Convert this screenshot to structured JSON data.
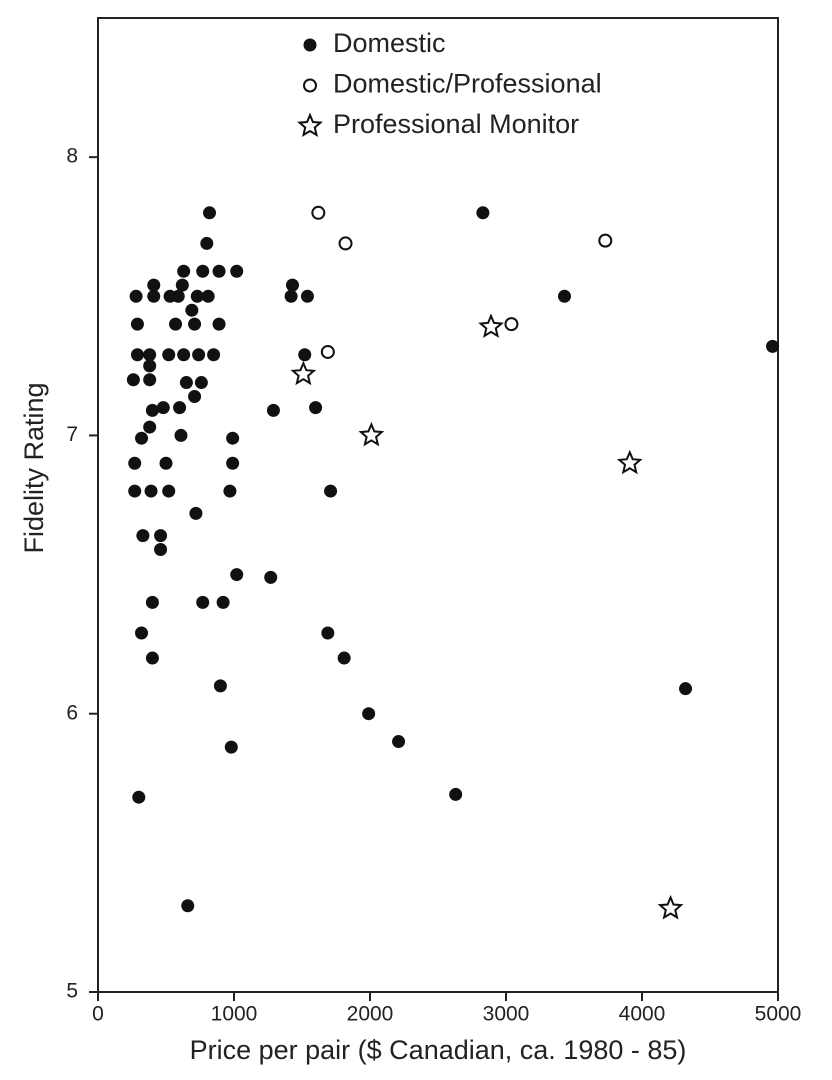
{
  "chart_data": {
    "type": "scatter",
    "x_label": "Price per pair ($ Canadian, ca. 1980 - 85)",
    "y_label": "Fidelity Rating",
    "xlim": [
      0,
      5000
    ],
    "ylim": [
      5,
      8.5
    ],
    "xticks": [
      0,
      1000,
      2000,
      3000,
      4000,
      5000
    ],
    "yticks": [
      5,
      6,
      7,
      8
    ],
    "legend": "top",
    "series": [
      {
        "name": "Domestic",
        "color": "#111111",
        "marker": "circle",
        "x": [
          280,
          410,
          410,
          290,
          290,
          260,
          380,
          380,
          380,
          400,
          380,
          480,
          320,
          270,
          270,
          390,
          500,
          520,
          330,
          460,
          460,
          400,
          320,
          400,
          300,
          530,
          590,
          630,
          620,
          570,
          520,
          630,
          600,
          610,
          650,
          690,
          710,
          730,
          740,
          710,
          760,
          770,
          810,
          800,
          820,
          850,
          890,
          890,
          1020,
          990,
          990,
          970,
          720,
          1020,
          770,
          920,
          900,
          980,
          660,
          1290,
          1270,
          1430,
          1420,
          1540,
          1520,
          1600,
          1710,
          1690,
          1810,
          1990,
          2210,
          2630,
          2830,
          3430,
          4960,
          4320
        ],
        "y": [
          7.5,
          7.54,
          7.5,
          7.4,
          7.29,
          7.2,
          7.29,
          7.2,
          7.25,
          7.09,
          7.03,
          7.1,
          6.99,
          6.9,
          6.8,
          6.8,
          6.9,
          6.8,
          6.64,
          6.64,
          6.59,
          6.4,
          6.29,
          6.2,
          5.7,
          7.5,
          7.5,
          7.59,
          7.54,
          7.4,
          7.29,
          7.29,
          7.1,
          7.0,
          7.19,
          7.45,
          7.4,
          7.5,
          7.29,
          7.14,
          7.19,
          7.59,
          7.5,
          7.69,
          7.8,
          7.29,
          7.59,
          7.4,
          7.59,
          6.99,
          6.9,
          6.8,
          6.72,
          6.5,
          6.4,
          6.4,
          6.1,
          5.88,
          5.31,
          7.09,
          6.49,
          7.54,
          7.5,
          7.5,
          7.29,
          7.1,
          6.8,
          6.29,
          6.2,
          6.0,
          5.9,
          5.71,
          7.8,
          7.5,
          7.32,
          6.09
        ]
      },
      {
        "name": "Domestic/Professional",
        "color": "#111111",
        "marker": "open-circle",
        "x": [
          1620,
          1820,
          1690,
          3040,
          3730
        ],
        "y": [
          7.8,
          7.69,
          7.3,
          7.4,
          7.7
        ]
      },
      {
        "name": "Professional Monitor",
        "color": "#111111",
        "marker": "star",
        "x": [
          1510,
          2010,
          2890,
          3910,
          4210
        ],
        "y": [
          7.22,
          7.0,
          7.39,
          6.9,
          5.3
        ]
      }
    ]
  }
}
